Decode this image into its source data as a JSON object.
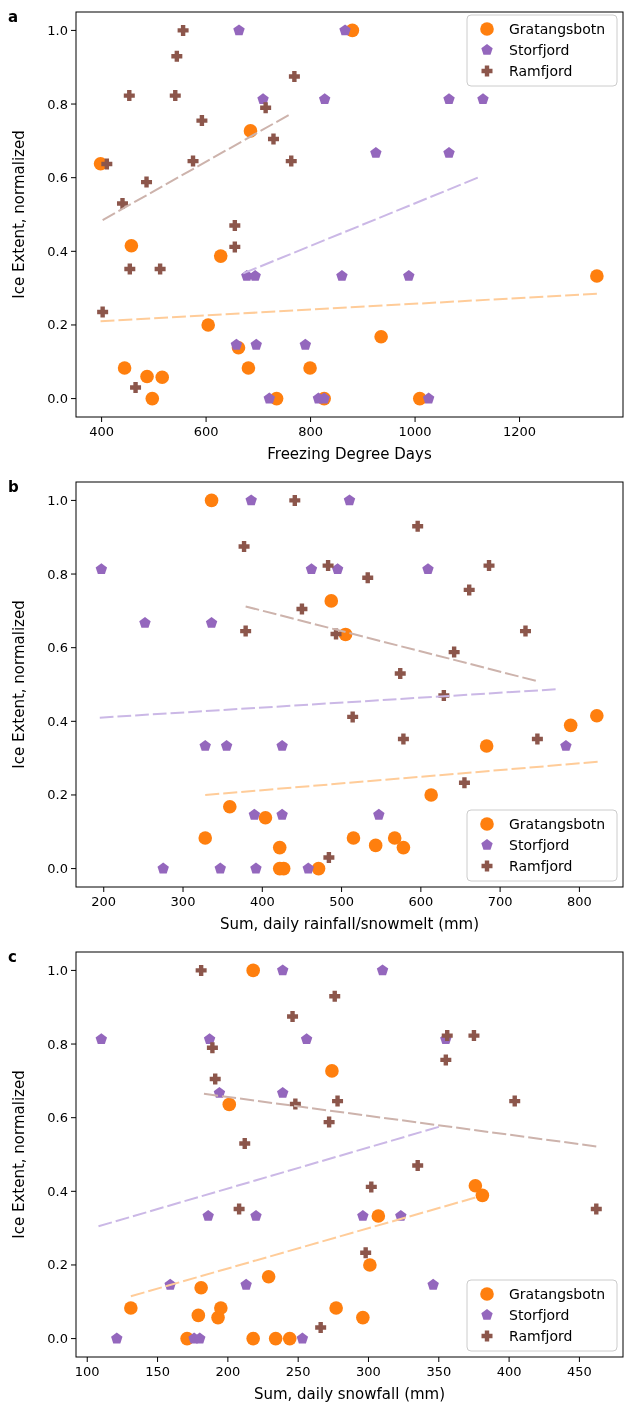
{
  "chart_data": [
    {
      "type": "scatter",
      "title": "a",
      "xlabel": "Freezing Degree Days",
      "ylabel": "Ice Extent, normalized",
      "xlim": [
        351,
        1398
      ],
      "xticks": [
        400,
        600,
        800,
        1000,
        1200
      ],
      "ylim": [
        -0.05,
        1.05
      ],
      "yticks": [
        {
          "value": 0,
          "label": "0.0"
        },
        {
          "value": 0.2,
          "label": "0.2"
        },
        {
          "value": 0.4,
          "label": "0.4"
        },
        {
          "value": 0.6,
          "label": "0.6"
        },
        {
          "value": 0.8,
          "label": "0.8"
        },
        {
          "value": 1,
          "label": "1.0"
        }
      ],
      "legend": "top right",
      "grid": false,
      "series": [
        {
          "name": "Gratangsbotn",
          "color": "#ff7f0e",
          "marker": "circle",
          "x": [
            398,
            444,
            487,
            497,
            516,
            457,
            604,
            628,
            662,
            681,
            685,
            735,
            799,
            826,
            880,
            935,
            1009,
            1348
          ],
          "values": [
            0.638,
            0.083,
            0.06,
            0,
            0.058,
            0.415,
            0.2,
            0.387,
            0.138,
            0.083,
            0.727,
            0,
            0.083,
            0,
            1.0,
            0.168,
            0,
            0.333
          ]
        },
        {
          "name": "Storfjord",
          "color": "#9467bd",
          "x": [
            663,
            866,
            709,
            827,
            1065,
            1130,
            925,
            1065,
            678,
            694,
            860,
            988,
            658,
            696,
            790,
            721,
            815,
            826,
            1026
          ],
          "values": [
            1.0,
            1.0,
            0.813,
            0.813,
            0.813,
            0.813,
            0.667,
            0.667,
            0.333,
            0.333,
            0.333,
            0.333,
            0.146,
            0.146,
            0.146,
            0,
            0,
            0,
            0
          ]
        },
        {
          "name": "Ramfjord",
          "color": "#8c564b",
          "marker": "cross",
          "x": [
            556,
            544,
            453,
            541,
            769,
            714,
            592,
            729,
            410,
            575,
            763,
            486,
            440,
            655,
            655,
            454,
            512,
            402,
            465
          ],
          "values": [
            1.0,
            0.93,
            0.823,
            0.823,
            0.875,
            0.79,
            0.755,
            0.705,
            0.637,
            0.645,
            0.645,
            0.588,
            0.53,
            0.47,
            0.412,
            0.352,
            0.352,
            0.235,
            0.03
          ]
        },
        {
          "type": "line",
          "color": "#ffcc99",
          "line_style": "dashed",
          "x": [
            398,
            1348
          ],
          "values": [
            0.21,
            0.285
          ]
        },
        {
          "type": "line",
          "color": "#cbb8e6",
          "line_style": "dashed",
          "x": [
            671,
            1120
          ],
          "values": [
            0.34,
            0.6
          ]
        },
        {
          "type": "line",
          "color": "#cdb3ac",
          "line_style": "dashed",
          "x": [
            402,
            758
          ],
          "values": [
            0.485,
            0.77
          ]
        }
      ]
    },
    {
      "type": "scatter",
      "title": "b",
      "xlabel": "Sum, daily rainfall/snowmelt (mm)",
      "ylabel": "Ice Extent, normalized",
      "xlim": [
        165,
        855
      ],
      "xticks": [
        200,
        300,
        400,
        500,
        600,
        700,
        800
      ],
      "ylim": [
        -0.05,
        1.05
      ],
      "yticks": [
        {
          "value": 0,
          "label": "0.0"
        },
        0.2,
        0.4,
        0.6,
        0.8,
        {
          "value": 1,
          "label": "1.0"
        }
      ],
      "legend": "bottom right",
      "grid": false,
      "series": [
        {
          "name": "Gratangsbotn",
          "color": "#ff7f0e",
          "marker": "circle",
          "x": [
            336,
            487,
            505,
            822,
            789,
            683,
            613,
            359,
            404,
            328,
            422,
            422,
            427,
            471,
            515,
            543,
            567,
            578
          ],
          "values": [
            1.0,
            0.727,
            0.636,
            0.415,
            0.389,
            0.333,
            0.2,
            0.168,
            0.138,
            0.083,
            0.057,
            0,
            0,
            0,
            0.083,
            0.063,
            0.083,
            0.057
          ]
        },
        {
          "name": "Storfjord",
          "color": "#9467bd",
          "x": [
            386,
            510,
            197,
            462,
            495,
            609,
            252,
            336,
            328,
            355,
            425,
            783,
            390,
            425,
            547,
            275,
            347,
            392,
            458
          ],
          "values": [
            1.0,
            1.0,
            0.813,
            0.813,
            0.813,
            0.813,
            0.667,
            0.667,
            0.333,
            0.333,
            0.333,
            0.333,
            0.146,
            0.146,
            0.146,
            0,
            0,
            0,
            0
          ]
        },
        {
          "name": "Ramfjord",
          "color": "#8c564b",
          "marker": "cross",
          "x": [
            441,
            596,
            377,
            483,
            686,
            533,
            661,
            450,
            379,
            493,
            732,
            642,
            574,
            629,
            514,
            578,
            747,
            655,
            484
          ],
          "values": [
            1.0,
            0.93,
            0.875,
            0.823,
            0.823,
            0.79,
            0.757,
            0.705,
            0.645,
            0.637,
            0.645,
            0.588,
            0.53,
            0.47,
            0.412,
            0.352,
            0.352,
            0.233,
            0.03
          ]
        },
        {
          "type": "line",
          "color": "#ffcc99",
          "line_style": "dashed",
          "x": [
            328,
            823
          ],
          "values": [
            0.2,
            0.29
          ]
        },
        {
          "type": "line",
          "color": "#cbb8e6",
          "line_style": "dashed",
          "x": [
            195,
            770
          ],
          "values": [
            0.41,
            0.487
          ]
        },
        {
          "type": "line",
          "color": "#cdb3ac",
          "line_style": "dashed",
          "x": [
            379,
            745
          ],
          "values": [
            0.712,
            0.51
          ]
        }
      ]
    },
    {
      "type": "scatter",
      "title": "c",
      "xlabel": "Sum, daily snowfall (mm)",
      "ylabel": "Ice Extent, normalized",
      "xlim": [
        92,
        481
      ],
      "xticks": [
        100,
        150,
        200,
        250,
        300,
        350,
        400,
        450
      ],
      "ylim": [
        -0.05,
        1.05
      ],
      "yticks": [
        {
          "value": 0,
          "label": "0.0"
        },
        0.2,
        0.4,
        0.6,
        0.8,
        {
          "value": 1,
          "label": "1.0"
        }
      ],
      "legend": "bottom right",
      "grid": false,
      "series": [
        {
          "name": "Gratangsbotn",
          "color": "#ff7f0e",
          "marker": "circle",
          "x": [
            218,
            274,
            201,
            376,
            381,
            307,
            301,
            229,
            181,
            131,
            179,
            193,
            195,
            277,
            296,
            171,
            218,
            234,
            244
          ],
          "values": [
            1.0,
            0.727,
            0.636,
            0.415,
            0.389,
            0.333,
            0.2,
            0.168,
            0.138,
            0.083,
            0.063,
            0.057,
            0.083,
            0.083,
            0.057,
            0,
            0,
            0,
            0
          ]
        },
        {
          "name": "Storfjord",
          "color": "#9467bd",
          "x": [
            239,
            310,
            110,
            187,
            256,
            355,
            194,
            239,
            186,
            220,
            296,
            323,
            159,
            213,
            346,
            121,
            176,
            180,
            253
          ],
          "values": [
            1.0,
            1.0,
            0.813,
            0.813,
            0.813,
            0.813,
            0.667,
            0.667,
            0.333,
            0.333,
            0.333,
            0.333,
            0.146,
            0.146,
            0.146,
            0,
            0,
            0,
            0
          ]
        },
        {
          "name": "Ramfjord",
          "color": "#8c564b",
          "marker": "cross",
          "x": [
            181,
            276,
            246,
            356,
            375,
            189,
            355,
            191,
            248,
            278,
            404,
            272,
            212,
            335,
            302,
            208,
            462,
            298,
            266
          ],
          "values": [
            1.0,
            0.93,
            0.875,
            0.823,
            0.823,
            0.79,
            0.757,
            0.705,
            0.637,
            0.645,
            0.645,
            0.588,
            0.53,
            0.47,
            0.412,
            0.352,
            0.352,
            0.233,
            0.03
          ]
        },
        {
          "type": "line",
          "color": "#ffcc99",
          "line_style": "dashed",
          "x": [
            131,
            376
          ],
          "values": [
            0.115,
            0.383
          ]
        },
        {
          "type": "line",
          "color": "#cbb8e6",
          "line_style": "dashed",
          "x": [
            108,
            350
          ],
          "values": [
            0.305,
            0.575
          ]
        },
        {
          "type": "line",
          "color": "#cdb3ac",
          "line_style": "dashed",
          "x": [
            183,
            462
          ],
          "values": [
            0.665,
            0.522
          ]
        }
      ]
    }
  ]
}
